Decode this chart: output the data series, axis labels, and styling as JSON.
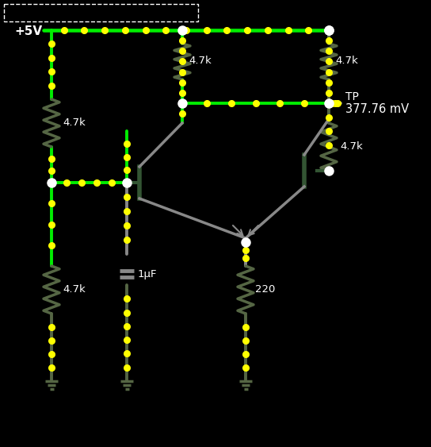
{
  "bg": "#000000",
  "green": "#00ee00",
  "yellow": "#ffff00",
  "white": "#ffffff",
  "gray": "#888888",
  "dgray": "#556644",
  "res_color": "#556644",
  "dark_green": "#335533",
  "vcc_label": "+5V",
  "tp_label1": "TP",
  "tp_label2": "377.76 mV",
  "r1": "4.7k",
  "r2": "4.7k",
  "r3": "4.7k",
  "r4": "4.7k",
  "r5": "4.7k",
  "r6": "220",
  "c1": "1μF",
  "figw": 5.44,
  "figh": 5.63,
  "dpi": 100
}
